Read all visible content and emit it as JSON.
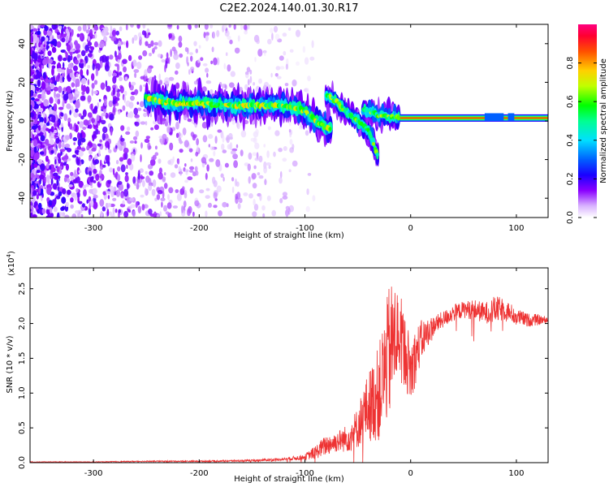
{
  "title": "C2E2.2024.140.01.30.R17",
  "colors": {
    "snr_line": "#ee3333",
    "spectro_background": "#ffffff"
  },
  "chart_data": [
    {
      "type": "heatmap",
      "name": "spectrogram",
      "xlabel": "Height of straight line (km)",
      "ylabel": "Frequency (Hz)",
      "xlim": [
        -360,
        130
      ],
      "ylim": [
        -50,
        50
      ],
      "xticks": [
        -300,
        -200,
        -100,
        0,
        100
      ],
      "yticks": [
        -40,
        -20,
        0,
        20,
        40
      ],
      "colorbar": {
        "label": "Normalized spectral amplitude",
        "range": [
          0.0,
          1.0
        ],
        "ticks": [
          0.0,
          0.2,
          0.4,
          0.6,
          0.8
        ]
      },
      "features": {
        "noise_region_x": [
          -360,
          -150
        ],
        "main_trace": [
          [
            -250,
            12
          ],
          [
            -240,
            10
          ],
          [
            -220,
            9
          ],
          [
            -200,
            9
          ],
          [
            -180,
            8
          ],
          [
            -160,
            8
          ],
          [
            -140,
            8
          ],
          [
            -120,
            8
          ],
          [
            -110,
            7
          ],
          [
            -100,
            5
          ],
          [
            -90,
            0
          ],
          [
            -80,
            -3
          ],
          [
            -75,
            -5
          ]
        ],
        "secondary_trace": [
          [
            -80,
            14
          ],
          [
            -70,
            10
          ],
          [
            -60,
            4
          ],
          [
            -50,
            0
          ],
          [
            -40,
            -5
          ],
          [
            -35,
            -12
          ],
          [
            -30,
            -20
          ]
        ],
        "upper_branch": [
          [
            -45,
            6
          ],
          [
            -38,
            5
          ],
          [
            -30,
            3
          ],
          [
            -20,
            2
          ],
          [
            -10,
            2
          ]
        ],
        "steady_line": [
          [
            -10,
            1.5
          ],
          [
            0,
            1.5
          ],
          [
            20,
            1.5
          ],
          [
            40,
            1.5
          ],
          [
            60,
            1.5
          ],
          [
            70,
            2
          ],
          [
            80,
            2.5
          ],
          [
            90,
            2.5
          ],
          [
            100,
            1.5
          ],
          [
            130,
            1.5
          ]
        ]
      }
    },
    {
      "type": "line",
      "name": "snr",
      "xlabel": "Height of straight line (km)",
      "ylabel": "SNR (10 * v/v)",
      "multiplier_label": "(x10",
      "multiplier_exp": "4",
      "multiplier_close": ")",
      "xlim": [
        -360,
        130
      ],
      "ylim": [
        0.0,
        2.8
      ],
      "xticks": [
        -300,
        -200,
        -100,
        0,
        100
      ],
      "yticks": [
        0.0,
        0.5,
        1.0,
        1.5,
        2.0,
        2.5
      ],
      "ytick_labels": [
        "0.0",
        "0.5",
        "1.0",
        "1.5",
        "2.0",
        "2.5"
      ],
      "x": [
        -360,
        -300,
        -250,
        -200,
        -150,
        -120,
        -100,
        -90,
        -80,
        -70,
        -60,
        -50,
        -45,
        -40,
        -35,
        -30,
        -25,
        -20,
        -15,
        -10,
        -5,
        0,
        5,
        10,
        20,
        30,
        40,
        50,
        60,
        70,
        80,
        90,
        100,
        110,
        120,
        130
      ],
      "y": [
        0.01,
        0.01,
        0.02,
        0.02,
        0.03,
        0.05,
        0.08,
        0.15,
        0.25,
        0.3,
        0.35,
        0.5,
        0.7,
        0.8,
        0.9,
        1.0,
        1.3,
        1.6,
        1.8,
        1.85,
        1.6,
        1.3,
        1.55,
        1.75,
        1.95,
        2.05,
        2.15,
        2.2,
        2.2,
        2.15,
        2.2,
        2.2,
        2.1,
        2.05,
        2.05,
        2.05
      ],
      "noise_amplitude": [
        0.005,
        0.005,
        0.008,
        0.01,
        0.015,
        0.02,
        0.04,
        0.1,
        0.15,
        0.15,
        0.2,
        0.3,
        0.4,
        0.5,
        0.6,
        0.7,
        0.8,
        1.0,
        0.8,
        0.6,
        0.5,
        0.5,
        0.4,
        0.3,
        0.15,
        0.12,
        0.12,
        0.12,
        0.15,
        0.15,
        0.2,
        0.15,
        0.12,
        0.1,
        0.08,
        0.05
      ]
    }
  ]
}
